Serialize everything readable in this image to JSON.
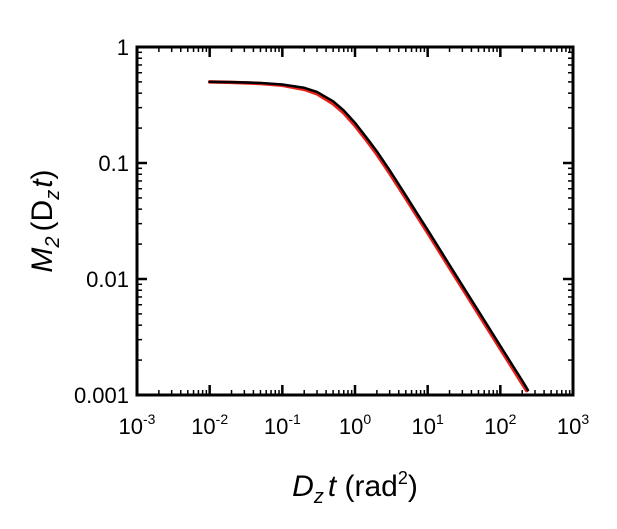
{
  "chart_data": {
    "type": "line",
    "x_scale": "log",
    "y_scale": "log",
    "xlim": [
      0.001,
      1000
    ],
    "ylim": [
      0.001,
      1
    ],
    "grid": false,
    "legend": "none",
    "x_ticks": [
      {
        "base": "10",
        "exp": "-3",
        "value": 0.001
      },
      {
        "base": "10",
        "exp": "-2",
        "value": 0.01
      },
      {
        "base": "10",
        "exp": "-1",
        "value": 0.1
      },
      {
        "base": "10",
        "exp": "0",
        "value": 1
      },
      {
        "base": "10",
        "exp": "1",
        "value": 10
      },
      {
        "base": "10",
        "exp": "2",
        "value": 100
      },
      {
        "base": "10",
        "exp": "3",
        "value": 1000
      }
    ],
    "y_ticks": [
      {
        "label": "1",
        "value": 1
      },
      {
        "label": "0.1",
        "value": 0.1
      },
      {
        "label": "0.01",
        "value": 0.01
      },
      {
        "label": "0.001",
        "value": 0.001
      }
    ],
    "xlabel": {
      "main": "D",
      "sub": "z",
      "var": "t",
      "unit_open": " (rad",
      "sup": "2",
      "unit_close": ")"
    },
    "ylabel": {
      "main": "M",
      "sub": "2",
      "arg_open": "(D",
      "arg_sub": "z",
      "arg_var": "t",
      "arg_close": ")"
    },
    "series": [
      {
        "color": "#e8201a",
        "width": 3.5,
        "x": [
          0.01,
          0.02,
          0.05,
          0.1,
          0.2,
          0.3,
          0.5,
          0.7,
          1,
          1.5,
          2,
          3,
          5,
          7,
          10,
          20,
          30,
          50,
          100,
          150,
          200,
          230
        ],
        "y": [
          0.5,
          0.495,
          0.485,
          0.468,
          0.431,
          0.395,
          0.324,
          0.27,
          0.21,
          0.152,
          0.119,
          0.0815,
          0.0496,
          0.0356,
          0.025,
          0.0125,
          0.00833,
          0.005,
          0.0025,
          0.00167,
          0.00125,
          0.00109
        ]
      },
      {
        "color": "#000000",
        "width": 2.5,
        "x": [
          0.01,
          0.02,
          0.05,
          0.1,
          0.2,
          0.3,
          0.5,
          0.7,
          1,
          1.5,
          2,
          3,
          5,
          7,
          10,
          20,
          30,
          50,
          100,
          150,
          200,
          240
        ],
        "y": [
          0.5,
          0.498,
          0.49,
          0.475,
          0.445,
          0.41,
          0.34,
          0.284,
          0.222,
          0.16,
          0.126,
          0.0865,
          0.0525,
          0.0376,
          0.0265,
          0.0132,
          0.0088,
          0.0053,
          0.00265,
          0.00177,
          0.00133,
          0.0011
        ]
      }
    ]
  }
}
